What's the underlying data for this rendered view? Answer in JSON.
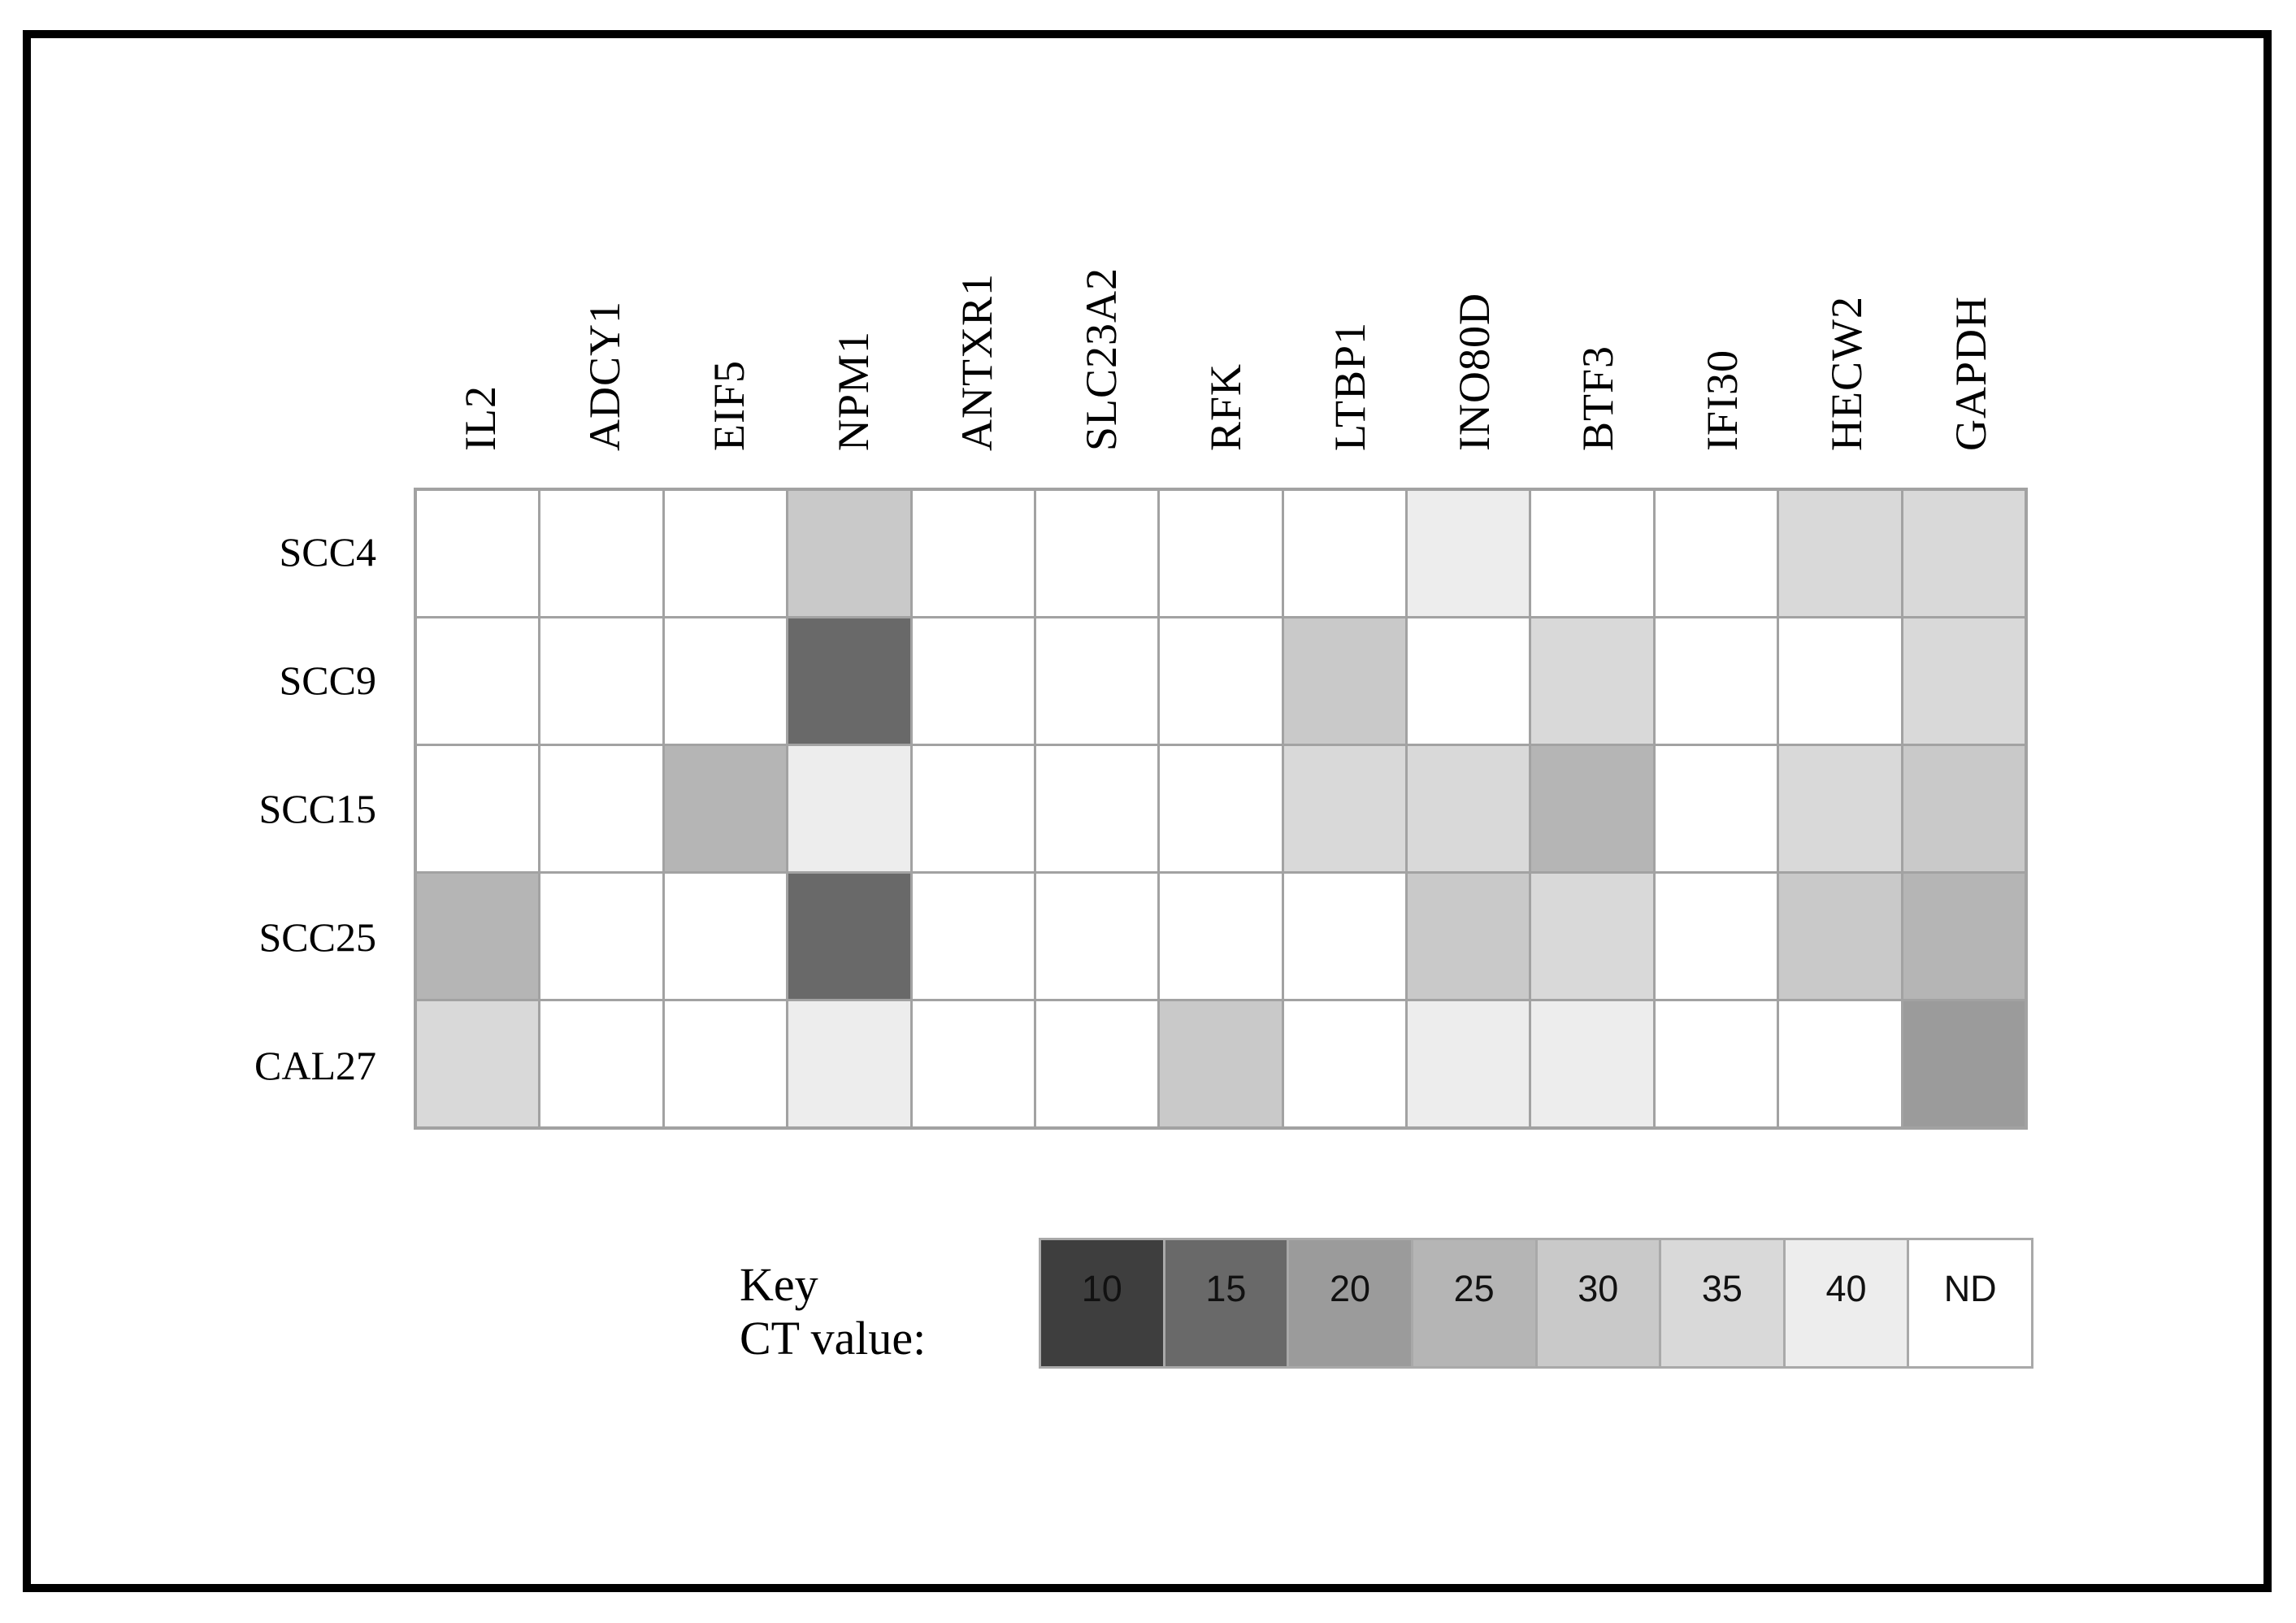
{
  "figure": {
    "description": "Heatmap of qPCR CT values for 13 genes across 5 oral squamous cell carcinoma cell lines",
    "key_title_line1": "Key",
    "key_title_line2": "CT value:"
  },
  "chart_data": {
    "type": "heatmap",
    "rows": [
      "SCC4",
      "SCC9",
      "SCC15",
      "SCC25",
      "CAL27"
    ],
    "columns": [
      "IL2",
      "ADCY1",
      "EIF5",
      "NPM1",
      "ANTXR1",
      "SLC23A2",
      "RFK",
      "LTBP1",
      "INO80D",
      "BTF3",
      "IFI30",
      "HECW2",
      "GAPDH"
    ],
    "values": [
      [
        "ND",
        "ND",
        "ND",
        "30",
        "ND",
        "ND",
        "ND",
        "ND",
        "40",
        "ND",
        "ND",
        "35",
        "35"
      ],
      [
        "ND",
        "ND",
        "ND",
        "15",
        "ND",
        "ND",
        "ND",
        "30",
        "ND",
        "35",
        "ND",
        "ND",
        "35"
      ],
      [
        "ND",
        "ND",
        "25",
        "40",
        "ND",
        "ND",
        "ND",
        "35",
        "35",
        "25",
        "ND",
        "35",
        "30"
      ],
      [
        "25",
        "ND",
        "ND",
        "15",
        "ND",
        "ND",
        "ND",
        "ND",
        "30",
        "35",
        "ND",
        "30",
        "25"
      ],
      [
        "35",
        "ND",
        "ND",
        "40",
        "ND",
        "ND",
        "30",
        "ND",
        "40",
        "40",
        "ND",
        "ND",
        "20"
      ]
    ],
    "legend": {
      "position": "bottom",
      "entries": [
        "10",
        "15",
        "20",
        "25",
        "30",
        "35",
        "40",
        "ND"
      ]
    },
    "color_scale": {
      "10": "#3e3e3e",
      "15": "#696969",
      "20": "#9b9b9b",
      "25": "#b5b5b5",
      "30": "#c9c9c9",
      "35": "#d9d9d9",
      "40": "#ededed",
      "ND": "#ffffff"
    },
    "grid_line_color": "#a2a2a2",
    "frame_color": "#000000"
  }
}
